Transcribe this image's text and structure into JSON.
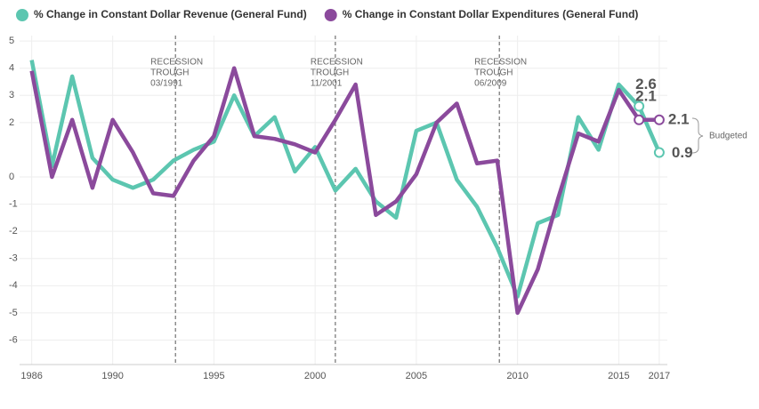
{
  "chart_data": {
    "type": "line",
    "x": [
      1986,
      1987,
      1988,
      1989,
      1990,
      1991,
      1992,
      1993,
      1994,
      1995,
      1996,
      1997,
      1998,
      1999,
      2000,
      2001,
      2002,
      2003,
      2004,
      2005,
      2006,
      2007,
      2008,
      2009,
      2010,
      2011,
      2012,
      2013,
      2014,
      2015,
      2016,
      2017
    ],
    "series": [
      {
        "name": "% Change in Constant Dollar Revenue (General Fund)",
        "color": "#5cc6b0",
        "values": [
          4.3,
          0.4,
          3.7,
          0.7,
          -0.1,
          -0.4,
          -0.1,
          0.6,
          1.0,
          1.3,
          3.0,
          1.5,
          2.2,
          0.2,
          1.1,
          -0.5,
          0.3,
          -0.9,
          -1.5,
          1.7,
          2.0,
          -0.1,
          -1.1,
          -2.6,
          -4.4,
          -1.7,
          -1.4,
          2.2,
          1.0,
          3.4,
          2.6,
          0.9
        ]
      },
      {
        "name": "% Change in Constant Dollar Expenditures (General Fund)",
        "color": "#8b4a9c",
        "values": [
          3.9,
          0.0,
          2.1,
          -0.4,
          2.1,
          0.9,
          -0.6,
          -0.7,
          0.6,
          1.5,
          4.0,
          1.5,
          1.4,
          1.2,
          0.9,
          2.1,
          3.4,
          -1.4,
          -0.9,
          0.1,
          2.0,
          2.7,
          0.5,
          0.6,
          -5.0,
          -3.4,
          -0.8,
          1.6,
          1.3,
          3.2,
          2.1,
          2.1
        ]
      }
    ],
    "xlim": [
      1985.4,
      2017.4
    ],
    "xticks": [
      1986,
      1990,
      1995,
      2000,
      2005,
      2010,
      2015,
      2017
    ],
    "ylim": [
      -6.9,
      5.2
    ],
    "yticks": [
      5,
      4,
      3,
      2,
      0,
      -1,
      -2,
      -3,
      -4,
      -5,
      -6
    ],
    "grid": true,
    "legend": "top-left",
    "annotations": [
      {
        "x": 1993.1,
        "lines": [
          "RECESSION",
          "TROUGH",
          "03/1991"
        ]
      },
      {
        "x": 2001.0,
        "lines": [
          "RECESSION",
          "TROUGH",
          "11/2001"
        ]
      },
      {
        "x": 2009.1,
        "lines": [
          "RECESSION",
          "TROUGH",
          "06/2009"
        ]
      }
    ],
    "budget_note": "Budgeted"
  }
}
